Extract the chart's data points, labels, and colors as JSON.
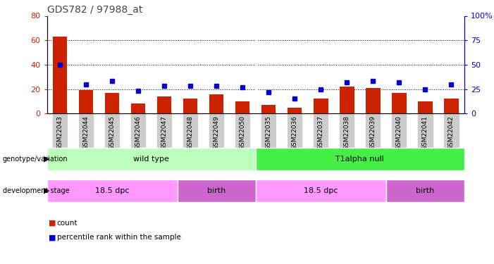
{
  "title": "GDS782 / 97988_at",
  "samples": [
    "GSM22043",
    "GSM22044",
    "GSM22045",
    "GSM22046",
    "GSM22047",
    "GSM22048",
    "GSM22049",
    "GSM22050",
    "GSM22035",
    "GSM22036",
    "GSM22037",
    "GSM22038",
    "GSM22039",
    "GSM22040",
    "GSM22041",
    "GSM22042"
  ],
  "counts": [
    63,
    19,
    17,
    8,
    14,
    12,
    16,
    10,
    7,
    5,
    12,
    22,
    21,
    17,
    10,
    12
  ],
  "percentiles": [
    50,
    30,
    33,
    23,
    28,
    28,
    28,
    27,
    22,
    15,
    25,
    32,
    33,
    32,
    25,
    30
  ],
  "bar_color": "#cc2200",
  "dot_color": "#0000cc",
  "ylim_left": [
    0,
    80
  ],
  "ylim_right": [
    0,
    100
  ],
  "yticks_left": [
    0,
    20,
    40,
    60,
    80
  ],
  "ytick_labels_right": [
    "0",
    "25",
    "50",
    "75",
    "100%"
  ],
  "grid_lines": [
    20,
    40,
    60
  ],
  "genotype_groups": [
    {
      "label": "wild type",
      "start": 0,
      "end": 8,
      "color": "#bbffbb"
    },
    {
      "label": "T1alpha null",
      "start": 8,
      "end": 16,
      "color": "#44ee44"
    }
  ],
  "stage_groups": [
    {
      "label": "18.5 dpc",
      "start": 0,
      "end": 5,
      "color": "#ff99ff"
    },
    {
      "label": "birth",
      "start": 5,
      "end": 8,
      "color": "#cc66cc"
    },
    {
      "label": "18.5 dpc",
      "start": 8,
      "end": 13,
      "color": "#ff99ff"
    },
    {
      "label": "birth",
      "start": 13,
      "end": 16,
      "color": "#cc66cc"
    }
  ],
  "bar_color_legend": "#cc2200",
  "dot_color_legend": "#0000cc",
  "background_color": "#ffffff",
  "tick_bg_color": "#cccccc",
  "title_color": "#444444",
  "title_fontsize": 10
}
